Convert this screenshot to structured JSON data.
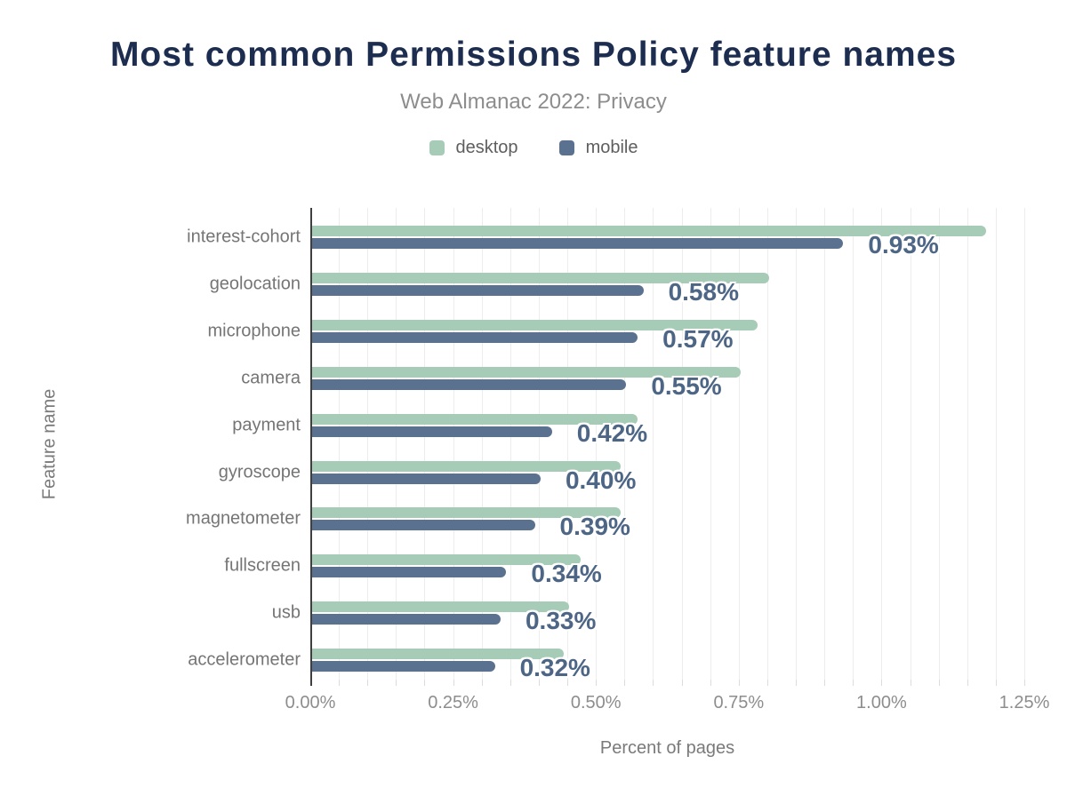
{
  "chart_data": {
    "type": "bar",
    "orientation": "horizontal",
    "title": "Most common Permissions Policy feature names",
    "subtitle": "Web Almanac 2022: Privacy",
    "xlabel": "Percent of pages",
    "ylabel": "Feature name",
    "categories": [
      "interest-cohort",
      "geolocation",
      "microphone",
      "camera",
      "payment",
      "gyroscope",
      "magnetometer",
      "fullscreen",
      "usb",
      "accelerometer"
    ],
    "series": [
      {
        "name": "desktop",
        "color": "#a6cbb6",
        "values": [
          1.18,
          0.8,
          0.78,
          0.75,
          0.57,
          0.54,
          0.54,
          0.47,
          0.45,
          0.44
        ]
      },
      {
        "name": "mobile",
        "color": "#5b7190",
        "values": [
          0.93,
          0.58,
          0.57,
          0.55,
          0.42,
          0.4,
          0.39,
          0.34,
          0.33,
          0.32
        ]
      }
    ],
    "data_labels": {
      "series": "mobile",
      "values": [
        "0.93%",
        "0.58%",
        "0.57%",
        "0.55%",
        "0.42%",
        "0.40%",
        "0.39%",
        "0.34%",
        "0.33%",
        "0.32%"
      ]
    },
    "x_ticks": [
      "0.00%",
      "0.25%",
      "0.50%",
      "0.75%",
      "1.00%",
      "1.25%"
    ],
    "xlim": [
      0,
      1.25
    ],
    "grid": "vertical, minor every 0.05%",
    "legend_position": "top-center"
  },
  "colors": {
    "title": "#1d2d50",
    "subtitle": "#8d8d8d",
    "desktop_bar": "#a6cbb6",
    "mobile_bar": "#5b7190",
    "value_label": "#4e6686",
    "axis_line": "#3f3f3f",
    "gridline": "#ededed",
    "category_label": "#757575",
    "tick_label": "#8d8d8d"
  }
}
